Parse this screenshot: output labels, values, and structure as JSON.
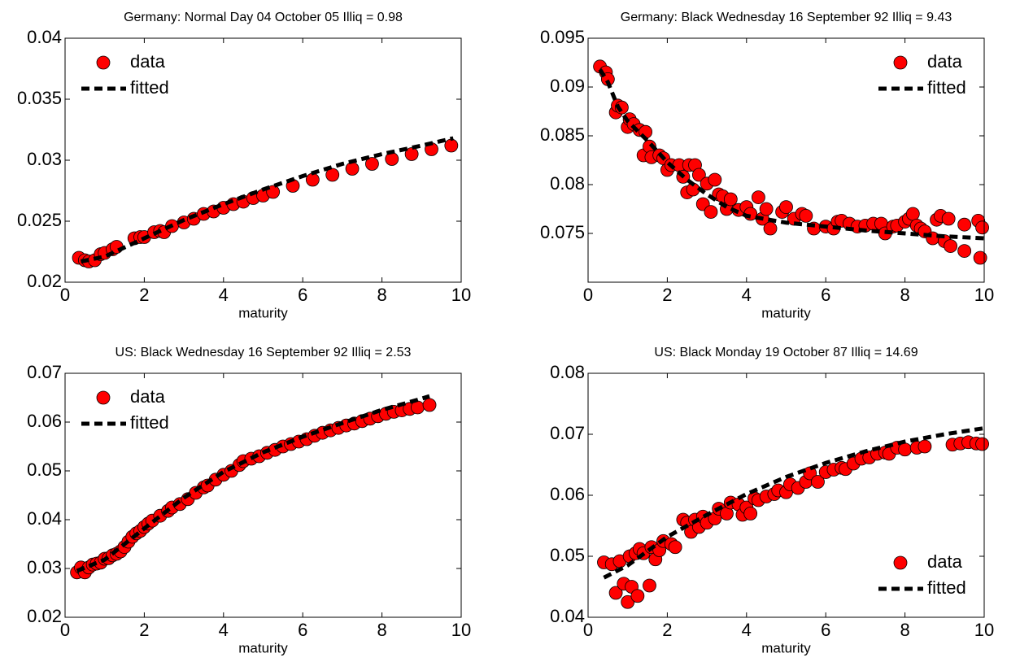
{
  "chart_data": [
    {
      "type": "scatter",
      "title": "Germany: Normal Day 04 October 05 Illiq = 0.98",
      "xlabel": "maturity",
      "xlim": [
        0,
        10
      ],
      "xticks": [
        0,
        2,
        4,
        6,
        8,
        10
      ],
      "ylim": [
        0.02,
        0.04
      ],
      "yticks": [
        0.02,
        0.025,
        0.03,
        0.035,
        0.04
      ],
      "legend": "upper left",
      "series": [
        {
          "name": "data",
          "color": "#ff0000",
          "marker": "circle",
          "x": [
            0.35,
            0.5,
            0.6,
            0.75,
            0.9,
            1.0,
            1.2,
            1.3,
            1.75,
            1.9,
            2.0,
            2.25,
            2.4,
            2.5,
            2.7,
            3.0,
            3.25,
            3.5,
            3.75,
            4.0,
            4.25,
            4.5,
            4.75,
            5.0,
            5.25,
            5.75,
            6.25,
            6.75,
            7.25,
            7.75,
            8.25,
            8.75,
            9.25,
            9.75
          ],
          "values": [
            0.022,
            0.0218,
            0.0217,
            0.0218,
            0.0223,
            0.0224,
            0.0227,
            0.0229,
            0.0236,
            0.0237,
            0.0237,
            0.0241,
            0.0242,
            0.0241,
            0.0246,
            0.0249,
            0.0252,
            0.0256,
            0.0258,
            0.0261,
            0.0264,
            0.0266,
            0.0269,
            0.0271,
            0.0274,
            0.0279,
            0.0284,
            0.0288,
            0.0293,
            0.0297,
            0.0301,
            0.0305,
            0.0309,
            0.0312
          ]
        },
        {
          "name": "fitted",
          "color": "#000000",
          "linestyle": "dashed",
          "x": [
            0.4,
            1.0,
            2,
            3,
            4,
            5,
            6,
            7,
            8,
            9,
            9.8
          ],
          "values": [
            0.0217,
            0.0221,
            0.0236,
            0.0251,
            0.0264,
            0.0276,
            0.0287,
            0.0297,
            0.0305,
            0.0312,
            0.0318
          ]
        }
      ]
    },
    {
      "type": "scatter",
      "title": "Germany: Black Wednesday 16 September 92 Illiq = 9.43",
      "xlabel": "maturity",
      "xlim": [
        0,
        10
      ],
      "xticks": [
        0,
        2,
        4,
        6,
        8,
        10
      ],
      "ylim": [
        0.07,
        0.095
      ],
      "yticks": [
        0.075,
        0.08,
        0.085,
        0.09,
        0.095
      ],
      "legend": "upper right",
      "series": [
        {
          "name": "data",
          "color": "#ff0000",
          "marker": "circle",
          "x": [
            0.3,
            0.45,
            0.5,
            0.7,
            0.75,
            0.85,
            1.0,
            1.05,
            1.15,
            1.3,
            1.4,
            1.45,
            1.55,
            1.6,
            1.8,
            1.9,
            2.0,
            2.1,
            2.3,
            2.4,
            2.5,
            2.55,
            2.65,
            2.7,
            2.8,
            2.9,
            3.0,
            3.1,
            3.2,
            3.3,
            3.4,
            3.5,
            3.6,
            3.8,
            4.0,
            4.1,
            4.3,
            4.4,
            4.5,
            4.6,
            4.9,
            5.0,
            5.2,
            5.4,
            5.5,
            5.7,
            6.0,
            6.2,
            6.3,
            6.4,
            6.6,
            6.8,
            7.0,
            7.2,
            7.4,
            7.5,
            7.7,
            7.8,
            8.0,
            8.1,
            8.2,
            8.3,
            8.4,
            8.5,
            8.7,
            8.8,
            8.9,
            9.0,
            9.1,
            9.15,
            9.5,
            9.5,
            9.85,
            9.9,
            9.95
          ],
          "values": [
            0.0921,
            0.0915,
            0.0908,
            0.0874,
            0.0881,
            0.0879,
            0.0859,
            0.0867,
            0.0862,
            0.0856,
            0.083,
            0.0854,
            0.0839,
            0.0828,
            0.083,
            0.0827,
            0.0815,
            0.082,
            0.082,
            0.0808,
            0.0792,
            0.082,
            0.0795,
            0.082,
            0.081,
            0.078,
            0.0801,
            0.0772,
            0.0805,
            0.079,
            0.0788,
            0.0775,
            0.0785,
            0.0774,
            0.0777,
            0.077,
            0.0787,
            0.0765,
            0.0775,
            0.0755,
            0.0772,
            0.0777,
            0.0765,
            0.077,
            0.0768,
            0.0755,
            0.0757,
            0.0755,
            0.0762,
            0.0763,
            0.076,
            0.0757,
            0.0758,
            0.076,
            0.076,
            0.075,
            0.0757,
            0.0758,
            0.0762,
            0.0765,
            0.077,
            0.0758,
            0.0755,
            0.0752,
            0.0745,
            0.0764,
            0.0768,
            0.0742,
            0.0765,
            0.0737,
            0.0732,
            0.0759,
            0.0763,
            0.0725,
            0.0756
          ]
        },
        {
          "name": "fitted",
          "color": "#000000",
          "linestyle": "dashed",
          "x": [
            0.3,
            0.5,
            0.75,
            1.0,
            1.5,
            2,
            2.5,
            3,
            3.5,
            4,
            5,
            6,
            7,
            8,
            9,
            10
          ],
          "values": [
            0.0918,
            0.0905,
            0.088,
            0.0865,
            0.0845,
            0.0823,
            0.0805,
            0.079,
            0.0777,
            0.0768,
            0.0761,
            0.0757,
            0.0753,
            0.075,
            0.0747,
            0.0745
          ]
        }
      ]
    },
    {
      "type": "scatter",
      "title": "US: Black Wednesday 16 September 92 Illiq = 2.53",
      "xlabel": "maturity",
      "xlim": [
        0,
        10
      ],
      "xticks": [
        0,
        2,
        4,
        6,
        8,
        10
      ],
      "ylim": [
        0.02,
        0.07
      ],
      "yticks": [
        0.02,
        0.03,
        0.04,
        0.05,
        0.06,
        0.07
      ],
      "legend": "upper left",
      "series": [
        {
          "name": "data",
          "color": "#ff0000",
          "marker": "circle",
          "x": [
            0.3,
            0.4,
            0.5,
            0.6,
            0.7,
            0.8,
            0.9,
            1.0,
            1.1,
            1.2,
            1.3,
            1.4,
            1.5,
            1.6,
            1.7,
            1.8,
            1.9,
            2.0,
            2.1,
            2.2,
            2.4,
            2.6,
            2.7,
            2.9,
            3.1,
            3.3,
            3.5,
            3.6,
            3.8,
            4.0,
            4.2,
            4.4,
            4.5,
            4.7,
            4.9,
            5.1,
            5.3,
            5.5,
            5.7,
            5.9,
            6.1,
            6.3,
            6.5,
            6.7,
            6.9,
            7.1,
            7.3,
            7.5,
            7.7,
            7.9,
            8.1,
            8.3,
            8.5,
            8.7,
            8.9,
            9.2
          ],
          "values": [
            0.0292,
            0.0302,
            0.0292,
            0.0302,
            0.0308,
            0.031,
            0.0312,
            0.032,
            0.0321,
            0.0327,
            0.033,
            0.0335,
            0.0344,
            0.0355,
            0.0365,
            0.0372,
            0.0377,
            0.0385,
            0.0392,
            0.0398,
            0.0408,
            0.0418,
            0.0425,
            0.0432,
            0.0442,
            0.0455,
            0.0466,
            0.047,
            0.0482,
            0.0492,
            0.05,
            0.0512,
            0.052,
            0.0525,
            0.053,
            0.0537,
            0.0543,
            0.055,
            0.0555,
            0.056,
            0.0565,
            0.0572,
            0.0578,
            0.0583,
            0.0588,
            0.0593,
            0.0597,
            0.0602,
            0.0607,
            0.0612,
            0.0617,
            0.0621,
            0.0624,
            0.0627,
            0.063,
            0.0635
          ]
        },
        {
          "name": "fitted",
          "color": "#000000",
          "linestyle": "dashed",
          "x": [
            0.3,
            1,
            2,
            3,
            4,
            5,
            6,
            7,
            8,
            9,
            9.2
          ],
          "values": [
            0.0295,
            0.0318,
            0.0382,
            0.0445,
            0.0498,
            0.0538,
            0.057,
            0.0598,
            0.0625,
            0.0648,
            0.0653
          ]
        }
      ]
    },
    {
      "type": "scatter",
      "title": "US: Black Monday 19 October 87 Illiq = 14.69",
      "xlabel": "maturity",
      "xlim": [
        0,
        10
      ],
      "xticks": [
        0,
        2,
        4,
        6,
        8,
        10
      ],
      "ylim": [
        0.04,
        0.08
      ],
      "yticks": [
        0.04,
        0.05,
        0.06,
        0.07,
        0.08
      ],
      "legend": "lower right",
      "series": [
        {
          "name": "data",
          "color": "#ff0000",
          "marker": "circle",
          "x": [
            0.4,
            0.6,
            0.7,
            0.8,
            0.9,
            1.0,
            1.05,
            1.1,
            1.2,
            1.25,
            1.3,
            1.4,
            1.55,
            1.6,
            1.7,
            1.8,
            1.9,
            2.1,
            2.2,
            2.4,
            2.5,
            2.6,
            2.7,
            2.8,
            2.9,
            3.0,
            3.2,
            3.3,
            3.5,
            3.6,
            3.8,
            3.9,
            4.0,
            4.1,
            4.2,
            4.3,
            4.5,
            4.7,
            4.8,
            5.0,
            5.1,
            5.3,
            5.5,
            5.6,
            5.8,
            6.0,
            6.2,
            6.4,
            6.5,
            6.7,
            6.9,
            7.1,
            7.3,
            7.5,
            7.6,
            7.8,
            8.0,
            8.3,
            8.5,
            9.2,
            9.4,
            9.6,
            9.8,
            9.95
          ],
          "values": [
            0.049,
            0.0487,
            0.044,
            0.0492,
            0.0455,
            0.0425,
            0.05,
            0.045,
            0.0505,
            0.0435,
            0.0512,
            0.0505,
            0.0452,
            0.0515,
            0.0495,
            0.051,
            0.0525,
            0.052,
            0.0515,
            0.056,
            0.0555,
            0.054,
            0.056,
            0.0548,
            0.0565,
            0.0555,
            0.0562,
            0.0578,
            0.057,
            0.0588,
            0.0585,
            0.0568,
            0.058,
            0.057,
            0.0595,
            0.0592,
            0.0598,
            0.0602,
            0.0608,
            0.0605,
            0.0618,
            0.0612,
            0.0622,
            0.0636,
            0.0622,
            0.0638,
            0.0642,
            0.0645,
            0.0643,
            0.0652,
            0.066,
            0.0662,
            0.0668,
            0.067,
            0.0668,
            0.0678,
            0.0675,
            0.0678,
            0.068,
            0.0683,
            0.0685,
            0.0687,
            0.0685,
            0.0684
          ]
        },
        {
          "name": "fitted",
          "color": "#000000",
          "linestyle": "dashed",
          "x": [
            0.4,
            1,
            2,
            3,
            4,
            5,
            6,
            7,
            8,
            9,
            10
          ],
          "values": [
            0.0465,
            0.0485,
            0.0532,
            0.0568,
            0.0602,
            0.063,
            0.0653,
            0.0672,
            0.0688,
            0.07,
            0.071
          ]
        }
      ]
    }
  ]
}
